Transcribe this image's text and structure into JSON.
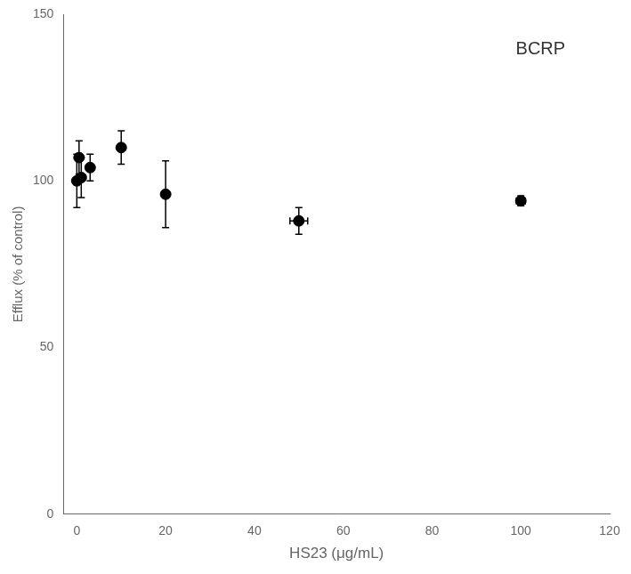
{
  "chart_data": {
    "type": "scatter",
    "xlabel": "HS23 (μg/mL)",
    "ylabel": "Efflux (% of control)",
    "x": [
      0,
      0.5,
      1,
      3,
      10,
      20,
      50,
      100
    ],
    "values": [
      100,
      107,
      101,
      104,
      110,
      96,
      88,
      94
    ],
    "yerr": [
      8,
      5,
      6,
      4,
      5,
      10,
      4,
      1.5
    ],
    "xerr": [
      0,
      0,
      0,
      0,
      0,
      0,
      2,
      1
    ],
    "xlim": [
      -3,
      120
    ],
    "ylim": [
      0,
      150
    ],
    "xticks": [
      0,
      20,
      40,
      60,
      80,
      100,
      120
    ],
    "yticks": [
      0,
      50,
      100,
      150
    ],
    "color": "black",
    "marker": "circle",
    "grid": false,
    "annotations": [
      {
        "text": "BCRP",
        "x": 110,
        "y": 142
      }
    ]
  }
}
